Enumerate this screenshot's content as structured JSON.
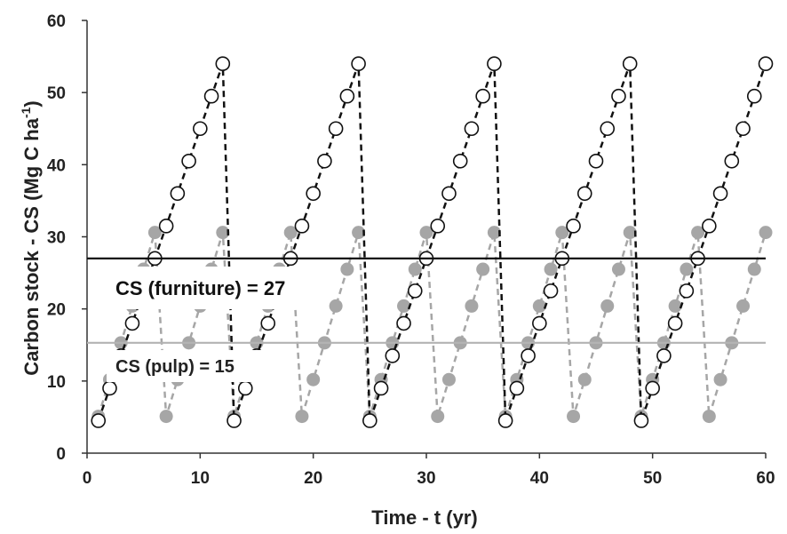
{
  "chart_data": {
    "type": "line",
    "xlabel": "Time - t (yr)",
    "ylabel": {
      "main": "Carbon stock - CS (Mg C ha",
      "sup": "-1",
      "tail": ")"
    },
    "xlim": [
      0,
      60
    ],
    "ylim": [
      0,
      60
    ],
    "x_ticks": [
      0,
      10,
      20,
      30,
      40,
      50,
      60
    ],
    "y_ticks": [
      0,
      10,
      20,
      30,
      40,
      50,
      60
    ],
    "grid": false,
    "colors": {
      "furniture": "#111111",
      "pulp": "#a6a6a6",
      "axis": "#333333"
    },
    "series": [
      {
        "marker": "open-circle",
        "line": "dashed",
        "x": [
          1,
          2,
          3,
          4,
          5,
          6,
          7,
          8,
          9,
          10,
          11,
          12,
          13,
          14,
          15,
          16,
          17,
          18,
          19,
          20,
          21,
          22,
          23,
          24,
          25,
          26,
          27,
          28,
          29,
          30,
          31,
          32,
          33,
          34,
          35,
          36,
          37,
          38,
          39,
          40,
          41,
          42,
          43,
          44,
          45,
          46,
          47,
          48,
          49,
          50,
          51,
          52,
          53,
          54,
          55,
          56,
          57,
          58,
          59,
          60
        ],
        "y": [
          4.5,
          9,
          13.5,
          18,
          22.5,
          27,
          31.5,
          36,
          40.5,
          45,
          49.5,
          54,
          4.5,
          9,
          13.5,
          18,
          22.5,
          27,
          31.5,
          36,
          40.5,
          45,
          49.5,
          54,
          4.5,
          9,
          13.5,
          18,
          22.5,
          27,
          31.5,
          36,
          40.5,
          45,
          49.5,
          54,
          4.5,
          9,
          13.5,
          18,
          22.5,
          27,
          31.5,
          36,
          40.5,
          45,
          49.5,
          54,
          4.5,
          9,
          13.5,
          18,
          22.5,
          27,
          31.5,
          36,
          40.5,
          45,
          49.5,
          54
        ]
      },
      {
        "marker": "filled-circle",
        "line": "dashed",
        "x": [
          1,
          2,
          3,
          4,
          5,
          6,
          7,
          8,
          9,
          10,
          11,
          12,
          13,
          14,
          15,
          16,
          17,
          18,
          19,
          20,
          21,
          22,
          23,
          24,
          25,
          26,
          27,
          28,
          29,
          30,
          31,
          32,
          33,
          34,
          35,
          36,
          37,
          38,
          39,
          40,
          41,
          42,
          43,
          44,
          45,
          46,
          47,
          48,
          49,
          50,
          51,
          52,
          53,
          54,
          55,
          56,
          57,
          58,
          59,
          60
        ],
        "y": [
          5.1,
          10.2,
          15.3,
          20.4,
          25.5,
          30.6,
          5.1,
          10.2,
          15.3,
          20.4,
          25.5,
          30.6,
          5.1,
          10.2,
          15.3,
          20.4,
          25.5,
          30.6,
          5.1,
          10.2,
          15.3,
          20.4,
          25.5,
          30.6,
          5.1,
          10.2,
          15.3,
          20.4,
          25.5,
          30.6,
          5.1,
          10.2,
          15.3,
          20.4,
          25.5,
          30.6,
          5.1,
          10.2,
          15.3,
          20.4,
          25.5,
          30.6,
          5.1,
          10.2,
          15.3,
          20.4,
          25.5,
          30.6,
          5.1,
          10.2,
          15.3,
          20.4,
          25.5,
          30.6,
          5.1,
          10.2,
          15.3,
          20.4,
          25.5,
          30.6
        ]
      }
    ],
    "reference_lines": [
      {
        "y": 27,
        "color": "#111111",
        "label": "CS (furniture) = 27"
      },
      {
        "y": 15.3,
        "color": "#b3b3b3",
        "label": "CS (pulp) = 15"
      }
    ]
  }
}
